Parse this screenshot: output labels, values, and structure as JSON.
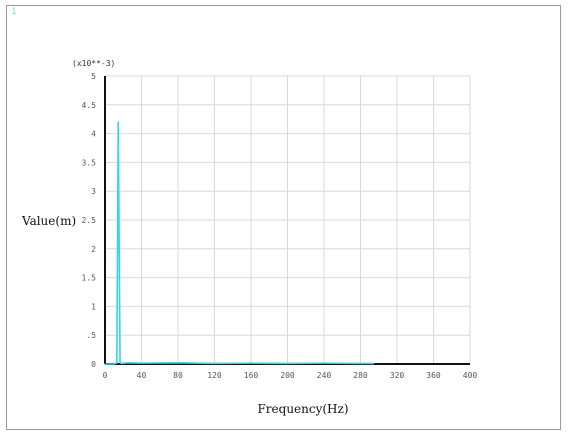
{
  "window": {
    "corner_label": "1"
  },
  "chart_data": {
    "type": "line",
    "title": "",
    "xlabel": "Frequency(Hz)",
    "ylabel": "Value(m)",
    "y_multiplier": "(x10**-3)",
    "xlim": [
      0,
      400
    ],
    "ylim": [
      0,
      5
    ],
    "x_ticks": [
      {
        "value": 0,
        "label": "0"
      },
      {
        "value": 40,
        "label": "40"
      },
      {
        "value": 80,
        "label": "80"
      },
      {
        "value": 120,
        "label": "120"
      },
      {
        "value": 160,
        "label": "160"
      },
      {
        "value": 200,
        "label": "200"
      },
      {
        "value": 240,
        "label": "240"
      },
      {
        "value": 280,
        "label": "280"
      },
      {
        "value": 320,
        "label": "320"
      },
      {
        "value": 360,
        "label": "360"
      },
      {
        "value": 400,
        "label": "400"
      }
    ],
    "y_ticks": [
      {
        "value": 0,
        "label": "0"
      },
      {
        "value": 0.5,
        "label": ".5"
      },
      {
        "value": 1,
        "label": "1"
      },
      {
        "value": 1.5,
        "label": "1.5"
      },
      {
        "value": 2,
        "label": "2"
      },
      {
        "value": 2.5,
        "label": "2.5"
      },
      {
        "value": 3,
        "label": "3"
      },
      {
        "value": 3.5,
        "label": "3.5"
      },
      {
        "value": 4,
        "label": "4"
      },
      {
        "value": 4.5,
        "label": "4.5"
      },
      {
        "value": 5,
        "label": "5"
      }
    ],
    "grid": true,
    "series_color": "#33d6e8",
    "axis_color": "#111111",
    "series": [
      {
        "x": [
          0,
          10,
          13,
          14.5,
          15.5,
          16.5,
          18,
          25,
          40,
          80,
          120,
          160,
          200,
          240,
          280,
          295
        ],
        "y": [
          0,
          0,
          0.02,
          4.2,
          2.1,
          0.02,
          0.01,
          0.02,
          0.015,
          0.02,
          0.01,
          0.015,
          0.01,
          0.015,
          0.01,
          0.01
        ]
      }
    ]
  }
}
